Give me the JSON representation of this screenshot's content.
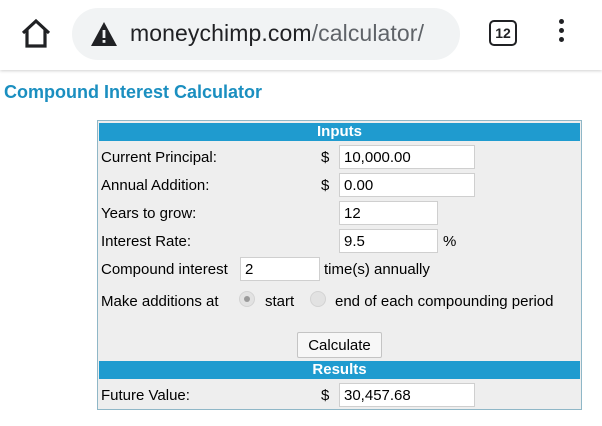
{
  "browser": {
    "url_host": "moneychimp.com",
    "url_path": "/calculator/",
    "tab_count": "12",
    "home_icon": "home-icon",
    "security_icon": "warning-triangle-icon",
    "menu_icon": "more-vert-icon"
  },
  "page": {
    "title": "Compound Interest Calculator"
  },
  "calculator": {
    "inputs_header": "Inputs",
    "principal": {
      "label": "Current Principal:",
      "currency": "$",
      "value": "10,000.00"
    },
    "annual_addition": {
      "label": "Annual Addition:",
      "currency": "$",
      "value": "0.00"
    },
    "years": {
      "label": "Years to grow:",
      "value": "12"
    },
    "interest_rate": {
      "label": "Interest Rate:",
      "value": "9.5",
      "unit": "%"
    },
    "compound": {
      "label": "Compound interest",
      "value": "2",
      "suffix": "time(s) annually"
    },
    "additions": {
      "label": "Make additions at",
      "option_start": "start",
      "option_end": "end of each compounding period",
      "selected": "start"
    },
    "calculate_label": "Calculate",
    "results_header": "Results",
    "future_value": {
      "label": "Future Value:",
      "currency": "$",
      "value": "30,457.68"
    }
  },
  "colors": {
    "title": "#1b8fc0",
    "header_bar": "#1f9bcf",
    "panel_bg": "#eeeeee"
  }
}
